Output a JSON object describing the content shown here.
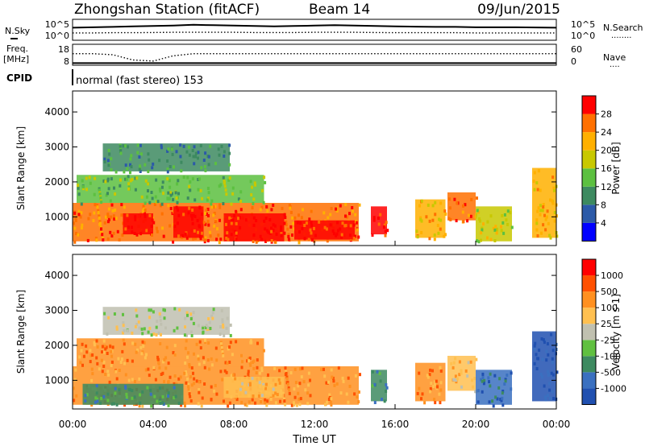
{
  "header": {
    "station": "Zhongshan Station (fitACF)",
    "beam": "Beam 14",
    "date": "09/Jun/2015"
  },
  "strip_labels": {
    "nsky": "N.Sky",
    "nsearch": "N.Search",
    "nsearch_dots": "········",
    "freq_line1": "Freq.",
    "freq_line2": "[MHz]",
    "nave": "Nave",
    "nave_dots": "····",
    "cpid": "CPID",
    "cpid_value": "normal (fast stereo) 153"
  },
  "chart_data": [
    {
      "type": "line",
      "name_id": "noise-strip",
      "yticks_left": [
        "10^5",
        "10^0"
      ],
      "yticks_right": [
        "10^5",
        "10^0"
      ],
      "x": [
        0,
        1,
        2,
        3,
        4,
        5,
        6,
        7,
        8,
        9,
        10,
        11,
        12,
        13,
        14,
        15,
        16,
        17,
        18,
        19,
        20,
        21,
        22,
        23,
        24
      ],
      "series": [
        {
          "style": "solid",
          "values": [
            0.6,
            0.62,
            0.64,
            0.66,
            0.68,
            0.7,
            0.74,
            0.72,
            0.7,
            0.68,
            0.66,
            0.68,
            0.7,
            0.72,
            0.7,
            0.68,
            0.66,
            0.65,
            0.64,
            0.64,
            0.62,
            0.62,
            0.62,
            0.61,
            0.6
          ]
        },
        {
          "style": "dotted",
          "values": [
            0.35,
            0.35,
            0.36,
            0.36,
            0.37,
            0.38,
            0.38,
            0.38,
            0.38,
            0.37,
            0.37,
            0.37,
            0.38,
            0.38,
            0.38,
            0.37,
            0.36,
            0.36,
            0.36,
            0.36,
            0.35,
            0.35,
            0.35,
            0.35,
            0.35
          ]
        }
      ]
    },
    {
      "type": "line",
      "name_id": "freq-strip",
      "yticks_left": [
        "18",
        "8"
      ],
      "yticks_right": [
        "60",
        "0"
      ],
      "x": [
        0,
        1,
        2,
        3,
        4,
        5,
        6,
        7,
        8,
        9,
        10,
        11,
        12,
        13,
        14,
        15,
        16,
        17,
        18,
        19,
        20,
        21,
        22,
        23,
        24
      ],
      "series": [
        {
          "style": "solid",
          "values": [
            0.1,
            0.1,
            0.1,
            0.1,
            0.1,
            0.1,
            0.1,
            0.1,
            0.1,
            0.1,
            0.1,
            0.1,
            0.1,
            0.1,
            0.1,
            0.1,
            0.1,
            0.1,
            0.1,
            0.1,
            0.1,
            0.1,
            0.1,
            0.1,
            0.1
          ]
        },
        {
          "style": "dotted",
          "values": [
            0.55,
            0.55,
            0.5,
            0.25,
            0.2,
            0.45,
            0.55,
            0.55,
            0.55,
            0.55,
            0.55,
            0.55,
            0.55,
            0.55,
            0.55,
            0.55,
            0.55,
            0.55,
            0.55,
            0.55,
            0.55,
            0.55,
            0.55,
            0.55,
            0.55
          ]
        }
      ]
    },
    {
      "type": "heatmap",
      "name_id": "power",
      "ylabel": "Slant Range [km]",
      "yticks": [
        1000,
        2000,
        3000,
        4000
      ],
      "ylim": [
        180,
        4600
      ],
      "colorbar_label": "Power [dB]",
      "colorbar_ticks": [
        "4",
        "8",
        "12",
        "16",
        "20",
        "24",
        "28"
      ],
      "colorbar_colors": [
        "#0000ff",
        "#2c5aa8",
        "#3d8a60",
        "#5cc040",
        "#c8c800",
        "#ffb000",
        "#ff7000",
        "#ff0000"
      ],
      "regions": [
        {
          "t0": 0.0,
          "t1": 14.2,
          "r0": 300,
          "r1": 1400,
          "level": 6
        },
        {
          "t0": 2.5,
          "t1": 4.0,
          "r0": 500,
          "r1": 1100,
          "level": 7
        },
        {
          "t0": 5.0,
          "t1": 6.5,
          "r0": 400,
          "r1": 1300,
          "level": 7
        },
        {
          "t0": 7.5,
          "t1": 10.5,
          "r0": 300,
          "r1": 1100,
          "level": 7
        },
        {
          "t0": 11.0,
          "t1": 14.0,
          "r0": 350,
          "r1": 900,
          "level": 7
        },
        {
          "t0": 0.2,
          "t1": 9.5,
          "r0": 1400,
          "r1": 2200,
          "level": 3
        },
        {
          "t0": 1.5,
          "t1": 7.8,
          "r0": 2300,
          "r1": 3100,
          "level": 2
        },
        {
          "t0": 14.8,
          "t1": 15.6,
          "r0": 500,
          "r1": 1300,
          "level": 7
        },
        {
          "t0": 17.0,
          "t1": 18.5,
          "r0": 400,
          "r1": 1500,
          "level": 5
        },
        {
          "t0": 18.6,
          "t1": 20.0,
          "r0": 900,
          "r1": 1700,
          "level": 6
        },
        {
          "t0": 20.0,
          "t1": 21.8,
          "r0": 300,
          "r1": 1300,
          "level": 4
        },
        {
          "t0": 22.8,
          "t1": 24.0,
          "r0": 400,
          "r1": 2400,
          "level": 5
        }
      ]
    },
    {
      "type": "heatmap",
      "name_id": "velocity",
      "ylabel": "Slant Range [km]",
      "yticks": [
        1000,
        2000,
        3000,
        4000
      ],
      "ylim": [
        180,
        4600
      ],
      "xticks": [
        "00:00",
        "04:00",
        "08:00",
        "12:00",
        "16:00",
        "20:00",
        "00:00"
      ],
      "xlabel": "Time UT",
      "colorbar_label": "Velocity [m s-1]",
      "colorbar_ticks": [
        "1000",
        "500",
        "100",
        "25",
        "-25",
        "-100",
        "-500",
        "-1000"
      ],
      "colorbar_colors": [
        "#2050b0",
        "#3a70c0",
        "#3d8a60",
        "#60c040",
        "#c0c0b0",
        "#ffc050",
        "#ff9020",
        "#ff5000",
        "#ff0000"
      ],
      "regions": [
        {
          "t0": 0.0,
          "t1": 14.2,
          "r0": 300,
          "r1": 1400,
          "level": 6
        },
        {
          "t0": 0.5,
          "t1": 5.5,
          "r0": 300,
          "r1": 900,
          "level": 2
        },
        {
          "t0": 7.5,
          "t1": 10.5,
          "r0": 500,
          "r1": 1100,
          "level": 5
        },
        {
          "t0": 0.2,
          "t1": 9.5,
          "r0": 1400,
          "r1": 2200,
          "level": 6
        },
        {
          "t0": 1.5,
          "t1": 7.8,
          "r0": 2300,
          "r1": 3100,
          "level": 4
        },
        {
          "t0": 14.8,
          "t1": 15.6,
          "r0": 400,
          "r1": 1300,
          "level": 2
        },
        {
          "t0": 17.0,
          "t1": 18.5,
          "r0": 400,
          "r1": 1500,
          "level": 6
        },
        {
          "t0": 18.6,
          "t1": 20.0,
          "r0": 700,
          "r1": 1700,
          "level": 5
        },
        {
          "t0": 20.0,
          "t1": 21.8,
          "r0": 300,
          "r1": 1300,
          "level": 1
        },
        {
          "t0": 22.8,
          "t1": 24.0,
          "r0": 400,
          "r1": 2400,
          "level": 0
        }
      ]
    }
  ]
}
